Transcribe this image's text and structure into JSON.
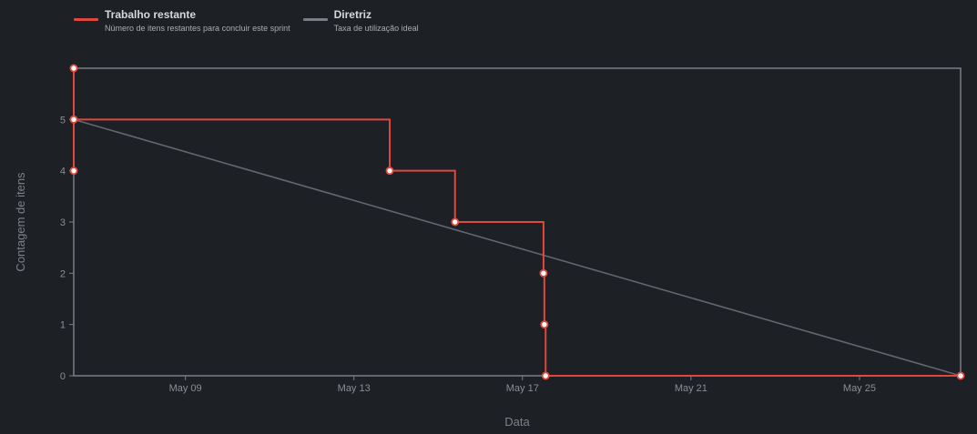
{
  "legend": [
    {
      "name": "Trabalho restante",
      "description": "Número de itens restantes para concluir este sprint",
      "color": "#e0473d"
    },
    {
      "name": "Diretriz",
      "description": "Taxa de utilização ideal",
      "color": "#7a7e84"
    }
  ],
  "chart_data": {
    "type": "line",
    "xlabel": "Data",
    "ylabel": "Contagem de itens",
    "x_tick_labels": [
      "May 09",
      "May 13",
      "May 17",
      "May 21",
      "May 25"
    ],
    "x_tick_days": [
      9,
      13,
      17,
      21,
      25
    ],
    "xlim_days": [
      6.35,
      27.4
    ],
    "y_ticks": [
      0,
      1,
      2,
      3,
      4,
      5
    ],
    "ylim": [
      0,
      6
    ],
    "grid": false,
    "series": [
      {
        "name": "Trabalho restante",
        "color": "#e0473d",
        "step": true,
        "points": [
          {
            "day": 6.35,
            "value": 6
          },
          {
            "day": 6.35,
            "value": 4
          },
          {
            "day": 6.35,
            "value": 5
          },
          {
            "day": 13.85,
            "value": 4
          },
          {
            "day": 15.4,
            "value": 3
          },
          {
            "day": 17.5,
            "value": 2
          },
          {
            "day": 17.52,
            "value": 1
          },
          {
            "day": 17.55,
            "value": 0
          },
          {
            "day": 27.4,
            "value": 0
          }
        ]
      },
      {
        "name": "Diretriz",
        "color": "#63676d",
        "step": false,
        "points": [
          {
            "day": 6.35,
            "value": 5
          },
          {
            "day": 27.4,
            "value": 0
          }
        ]
      }
    ]
  }
}
